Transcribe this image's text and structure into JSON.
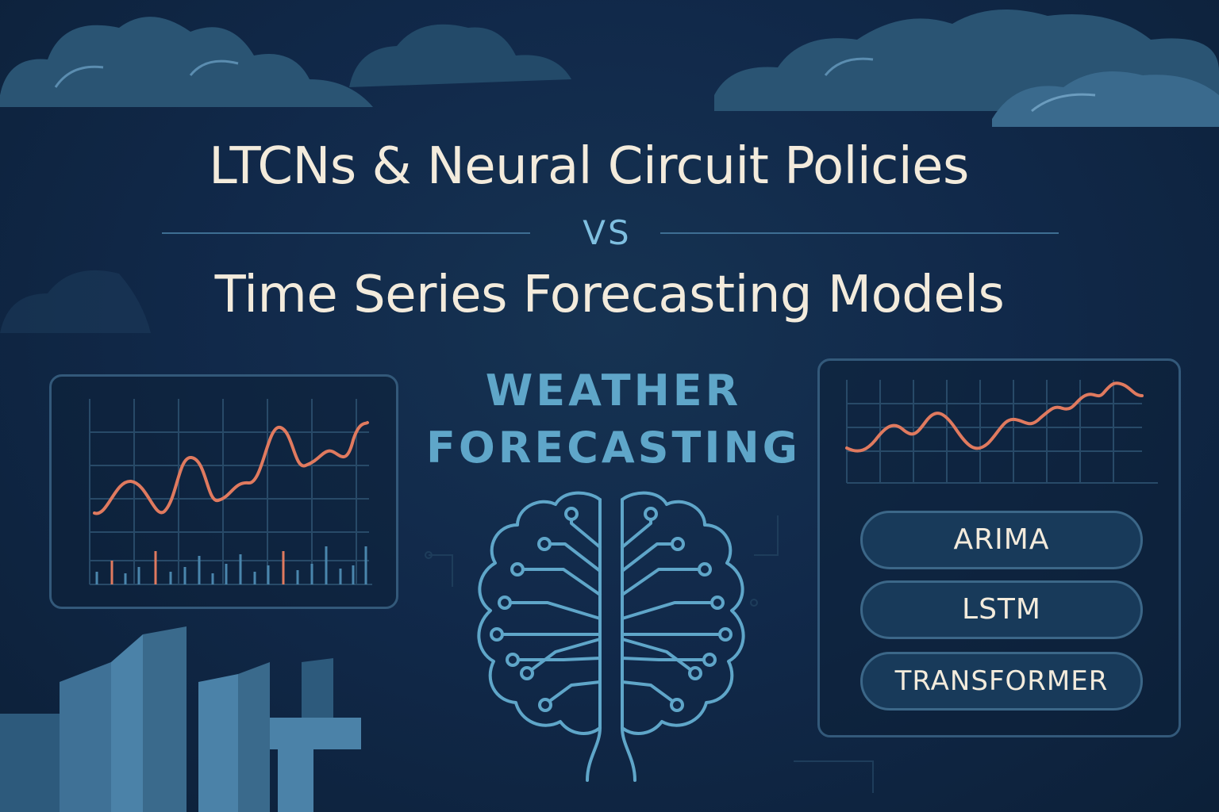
{
  "title": {
    "line1": "LTCNs & Neural Circuit Policies",
    "separator": "VS",
    "line2": "Time Series Forecasting Models"
  },
  "subtitle": {
    "line1": "WEATHER",
    "line2": "FORECASTING"
  },
  "models": [
    "ARIMA",
    "LSTM",
    "TRANSFORMER"
  ],
  "icons": {
    "center": "brain-circuit-icon",
    "background": [
      "cloud-icon",
      "building-icon"
    ]
  },
  "colors": {
    "background": "#11294a",
    "title": "#f3ebdc",
    "accent": "#5fa6c9",
    "series_line": "#e07a5f",
    "panel_border": "#33597a"
  }
}
